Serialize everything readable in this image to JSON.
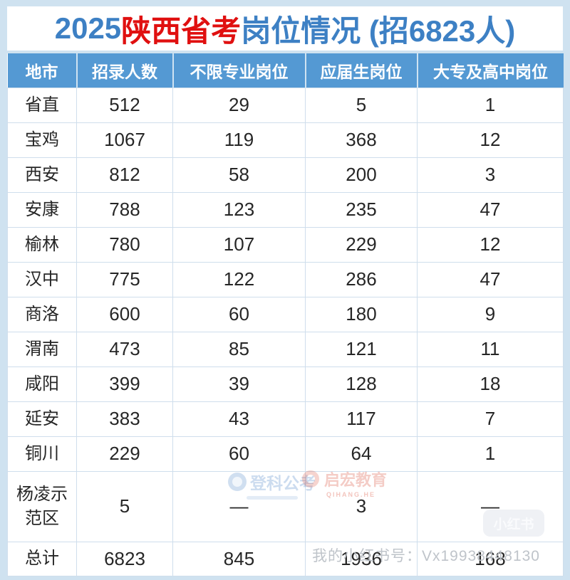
{
  "title": {
    "part1": "2025",
    "part2": "陕西省考",
    "part3": "岗位情况 (招6823人)"
  },
  "colors": {
    "page_background": "#cfe2f0",
    "header_background": "#5499d3",
    "title_blue": "#3d80c4",
    "title_red": "#e01010",
    "cell_border": "#cfdeec",
    "cell_text": "#262626",
    "header_text": "#ffffff"
  },
  "table": {
    "headers": [
      "地市",
      "招录人数",
      "不限专业岗位",
      "应届生岗位",
      "大专及高中岗位"
    ],
    "rows": [
      {
        "city": "省直",
        "values": [
          "512",
          "29",
          "5",
          "1"
        ]
      },
      {
        "city": "宝鸡",
        "values": [
          "1067",
          "119",
          "368",
          "12"
        ]
      },
      {
        "city": "西安",
        "values": [
          "812",
          "58",
          "200",
          "3"
        ]
      },
      {
        "city": "安康",
        "values": [
          "788",
          "123",
          "235",
          "47"
        ]
      },
      {
        "city": "榆林",
        "values": [
          "780",
          "107",
          "229",
          "12"
        ]
      },
      {
        "city": "汉中",
        "values": [
          "775",
          "122",
          "286",
          "47"
        ]
      },
      {
        "city": "商洛",
        "values": [
          "600",
          "60",
          "180",
          "9"
        ]
      },
      {
        "city": "渭南",
        "values": [
          "473",
          "85",
          "121",
          "11"
        ]
      },
      {
        "city": "咸阳",
        "values": [
          "399",
          "39",
          "128",
          "18"
        ]
      },
      {
        "city": "延安",
        "values": [
          "383",
          "43",
          "117",
          "7"
        ]
      },
      {
        "city": "铜川",
        "values": [
          "229",
          "60",
          "64",
          "1"
        ]
      },
      {
        "city": "杨凌示范区",
        "values": [
          "5",
          "—",
          "3",
          "—"
        ],
        "tall": true
      },
      {
        "city": "总计",
        "values": [
          "6823",
          "845",
          "1936",
          "168"
        ],
        "total": true
      }
    ]
  },
  "watermarks": {
    "dengke": {
      "label": "登科公考"
    },
    "qihang": {
      "label": "启宏教育",
      "sub": "QIHANG.HE"
    },
    "xiaohongshu": {
      "label": "小红书"
    },
    "phone": {
      "text": "我的小红书号：Vx19938448130"
    }
  },
  "chart_data": {
    "type": "table",
    "title": "2025陕西省考岗位情况 (招6823人)",
    "columns": [
      "地市",
      "招录人数",
      "不限专业岗位",
      "应届生岗位",
      "大专及高中岗位"
    ],
    "rows": [
      [
        "省直",
        512,
        29,
        5,
        1
      ],
      [
        "宝鸡",
        1067,
        119,
        368,
        12
      ],
      [
        "西安",
        812,
        58,
        200,
        3
      ],
      [
        "安康",
        788,
        123,
        235,
        47
      ],
      [
        "榆林",
        780,
        107,
        229,
        12
      ],
      [
        "汉中",
        775,
        122,
        286,
        47
      ],
      [
        "商洛",
        600,
        60,
        180,
        9
      ],
      [
        "渭南",
        473,
        85,
        121,
        11
      ],
      [
        "咸阳",
        399,
        39,
        128,
        18
      ],
      [
        "延安",
        383,
        43,
        117,
        7
      ],
      [
        "铜川",
        229,
        60,
        64,
        1
      ],
      [
        "杨凌示范区",
        5,
        "—",
        3,
        "—"
      ],
      [
        "总计",
        6823,
        845,
        1936,
        168
      ]
    ],
    "total_recruits": 6823
  }
}
